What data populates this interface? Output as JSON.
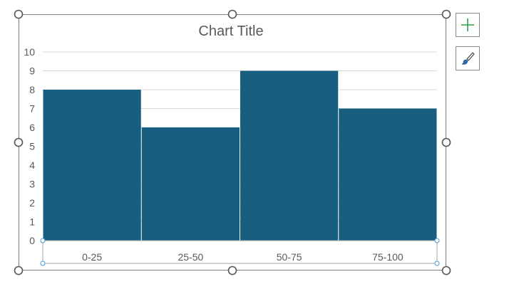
{
  "chart_data": {
    "type": "bar",
    "title": "Chart Title",
    "categories": [
      "0-25",
      "25-50",
      "50-75",
      "75-100"
    ],
    "values": [
      8,
      6,
      9,
      7
    ],
    "ylim": [
      0,
      10
    ],
    "yticks": [
      "0",
      "1",
      "2",
      "3",
      "4",
      "5",
      "6",
      "7",
      "8",
      "9",
      "10"
    ],
    "grid": true,
    "bar_color": "#175E80"
  },
  "side_buttons": {
    "add_icon": "plus-icon",
    "style_icon": "paintbrush-icon",
    "add_color": "#2E9E47",
    "brush_color": "#2F6FB6"
  }
}
